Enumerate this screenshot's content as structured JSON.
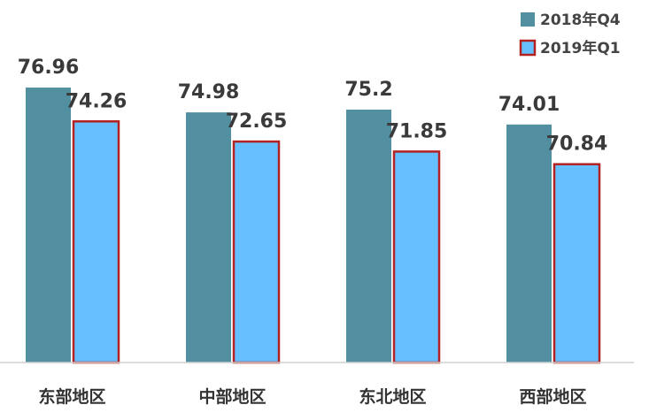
{
  "chart_data": {
    "type": "bar",
    "title": "",
    "xlabel": "",
    "ylabel": "",
    "categories": [
      "东部地区",
      "中部地区",
      "东北地区",
      "西部地区"
    ],
    "series": [
      {
        "name": "2018年Q4",
        "values": [
          76.96,
          74.98,
          75.2,
          74.01
        ],
        "labels": [
          "76.96",
          "74.98",
          "75.2",
          "74.01"
        ],
        "color": "#528FA1",
        "border": "#528FA1"
      },
      {
        "name": "2019年Q1",
        "values": [
          74.26,
          72.65,
          71.85,
          70.84
        ],
        "labels": [
          "74.26",
          "72.65",
          "71.85",
          "70.84"
        ],
        "color": "#66BFFF",
        "border": "#B22222"
      }
    ],
    "ylim": [
      55,
      78.5
    ],
    "grid": false,
    "legend": "top-right"
  }
}
